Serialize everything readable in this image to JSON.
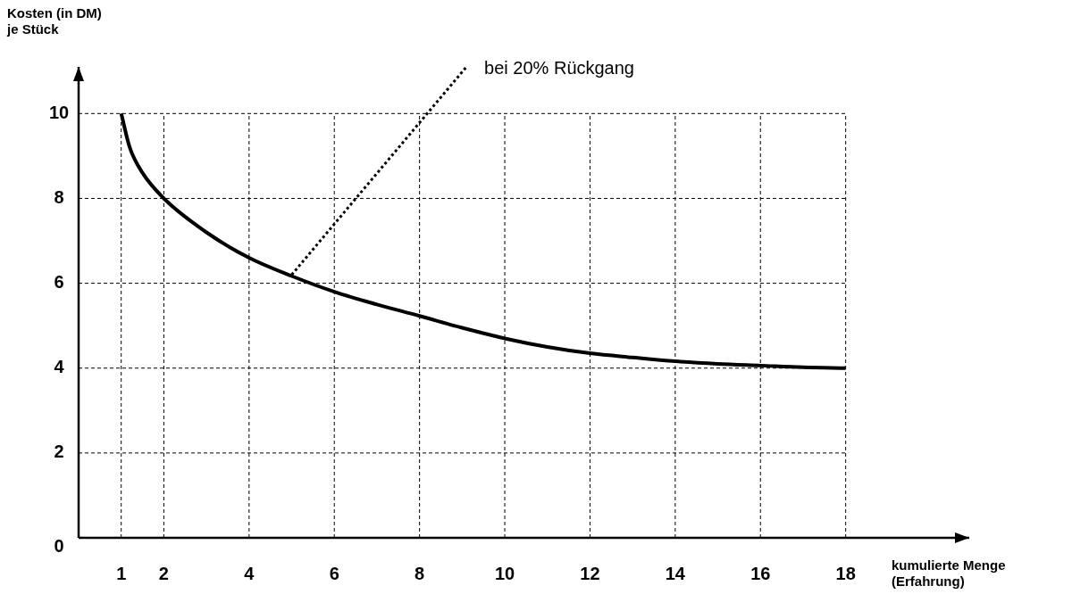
{
  "chart_data": {
    "type": "line",
    "xlabel": "kumulierte Menge (Erfahrung)",
    "ylabel": "Kosten (in DM) je Stück",
    "xlim": [
      0,
      20.9
    ],
    "ylim": [
      0,
      11.1
    ],
    "xticks": [
      1,
      2,
      4,
      6,
      8,
      10,
      12,
      14,
      16,
      18
    ],
    "yticks": [
      0,
      2,
      4,
      6,
      8,
      10
    ],
    "grid": true,
    "legend": false,
    "marker": "none",
    "series": [
      {
        "color": "#000000",
        "line_style": "solid",
        "x": [
          1,
          1.2,
          1.5,
          2,
          3,
          4,
          5,
          6,
          7,
          8,
          9,
          10,
          11,
          12,
          13,
          14,
          15,
          16,
          17,
          18
        ],
        "values": [
          10,
          9.2,
          8.6,
          8,
          7.2,
          6.6,
          6.17,
          5.8,
          5.5,
          5.23,
          4.95,
          4.7,
          4.5,
          4.35,
          4.25,
          4.16,
          4.1,
          4.06,
          4.02,
          4
        ]
      },
      {
        "color": "#000000",
        "line_style": "dotted",
        "x": [
          5,
          9.1
        ],
        "values": [
          6.2,
          11.1
        ]
      }
    ],
    "annotations": [
      {
        "text": "bei 20% Rückgang",
        "x": 9.1,
        "y": 11.1
      }
    ]
  }
}
